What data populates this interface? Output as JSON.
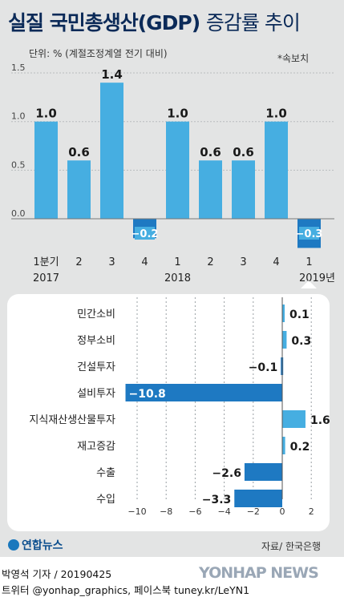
{
  "header": {
    "title_bold": "실질 국민총생산(GDP)",
    "title_light": "증감률 추이",
    "unit": "단위: % (계절조정계열 전기 대비)",
    "note": "*속보치"
  },
  "footer": {
    "logo": "연합뉴스",
    "source": "자료/ 한국은행",
    "byline": "박영석 기자 / 20190425",
    "social": "트위터 @yonhap_graphics, 페이스북 tuney.kr/LeYN1",
    "watermark": "YONHAP NEWS"
  },
  "colors": {
    "bar": "#46aee1",
    "bar_negative": "#1e79c2",
    "background": "#e3e4e4"
  },
  "chart_data": [
    {
      "type": "bar",
      "categories": [
        "1분기",
        "2",
        "3",
        "4",
        "1",
        "2",
        "3",
        "4",
        "1"
      ],
      "year_labels": [
        "2017",
        "",
        "",
        "",
        "2018",
        "",
        "",
        "",
        "2019년"
      ],
      "values": [
        1.0,
        0.6,
        1.4,
        -0.2,
        1.0,
        0.6,
        0.6,
        1.0,
        -0.3
      ],
      "value_labels": [
        "1.0",
        "0.6",
        "1.4",
        "−0.2",
        "1.0",
        "0.6",
        "0.6",
        "1.0",
        "−0.3"
      ],
      "yticks": [
        "1.5",
        "1.0",
        "0.5",
        "0.0"
      ],
      "ylim": [
        -0.4,
        1.6
      ],
      "grid": true
    },
    {
      "type": "bar",
      "orientation": "horizontal",
      "categories": [
        "민간소비",
        "정부소비",
        "건설투자",
        "설비투자",
        "지식재산생산물투자",
        "재고증감",
        "수출",
        "수입"
      ],
      "values": [
        0.1,
        0.3,
        -0.1,
        -10.8,
        1.6,
        0.2,
        -2.6,
        -3.3
      ],
      "value_labels": [
        "0.1",
        "0.3",
        "−0.1",
        "−10.8",
        "1.6",
        "0.2",
        "−2.6",
        "−3.3"
      ],
      "xticks": [
        "−10",
        "−8",
        "−6",
        "−4",
        "−2",
        "0",
        "2"
      ],
      "xlim": [
        -11,
        2.4
      ],
      "grid": true
    }
  ]
}
